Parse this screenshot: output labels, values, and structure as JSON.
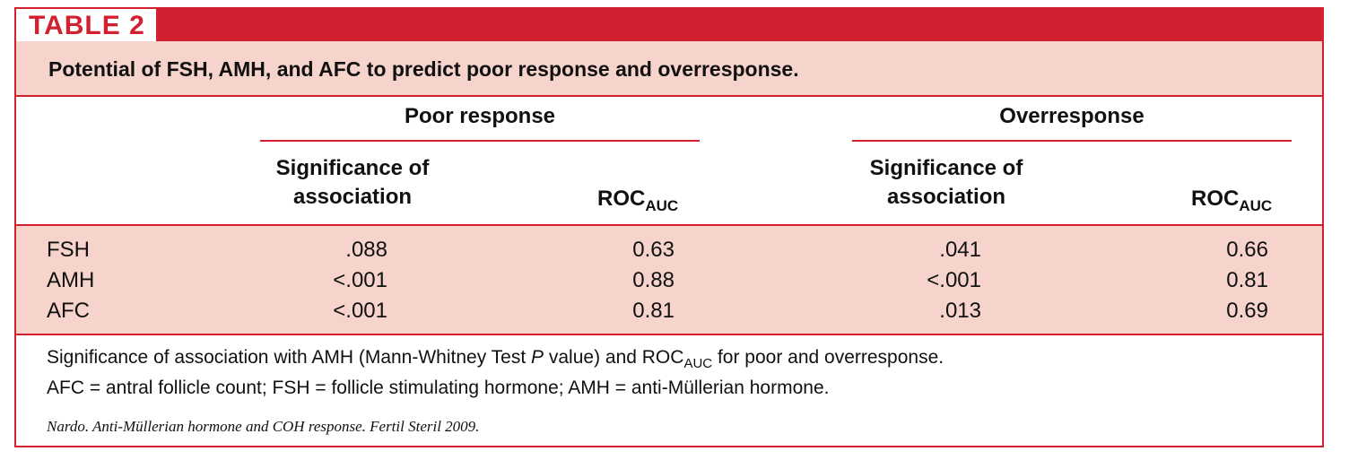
{
  "table": {
    "tag": "TABLE 2",
    "caption": "Potential of FSH, AMH, and AFC to predict poor response and overresponse.",
    "groups": [
      {
        "label": "Poor response"
      },
      {
        "label": "Overresponse"
      }
    ],
    "column_headers": {
      "significance_line1": "Significance of",
      "significance_line2": "association",
      "roc_main": "ROC",
      "roc_sub": "AUC"
    },
    "rows": [
      {
        "label": "FSH",
        "poor_sig": ".088",
        "poor_roc": "0.63",
        "over_sig": ".041",
        "over_roc": "0.66"
      },
      {
        "label": "AMH",
        "poor_sig": "<.001",
        "poor_roc": "0.88",
        "over_sig": "<.001",
        "over_roc": "0.81"
      },
      {
        "label": "AFC",
        "poor_sig": "<.001",
        "poor_roc": "0.81",
        "over_sig": ".013",
        "over_roc": "0.69"
      }
    ],
    "footnote": {
      "line1_a": "Significance of association with AMH (Mann-Whitney Test ",
      "line1_p": "P",
      "line1_b": " value) and ROC",
      "line1_sub": "AUC",
      "line1_c": " for poor and overresponse.",
      "line2": "AFC = antral follicle count; FSH = follicle stimulating hormone; AMH = anti-Müllerian hormone."
    },
    "citation": "Nardo. Anti-Müllerian hormone and COH response. Fertil Steril 2009."
  }
}
